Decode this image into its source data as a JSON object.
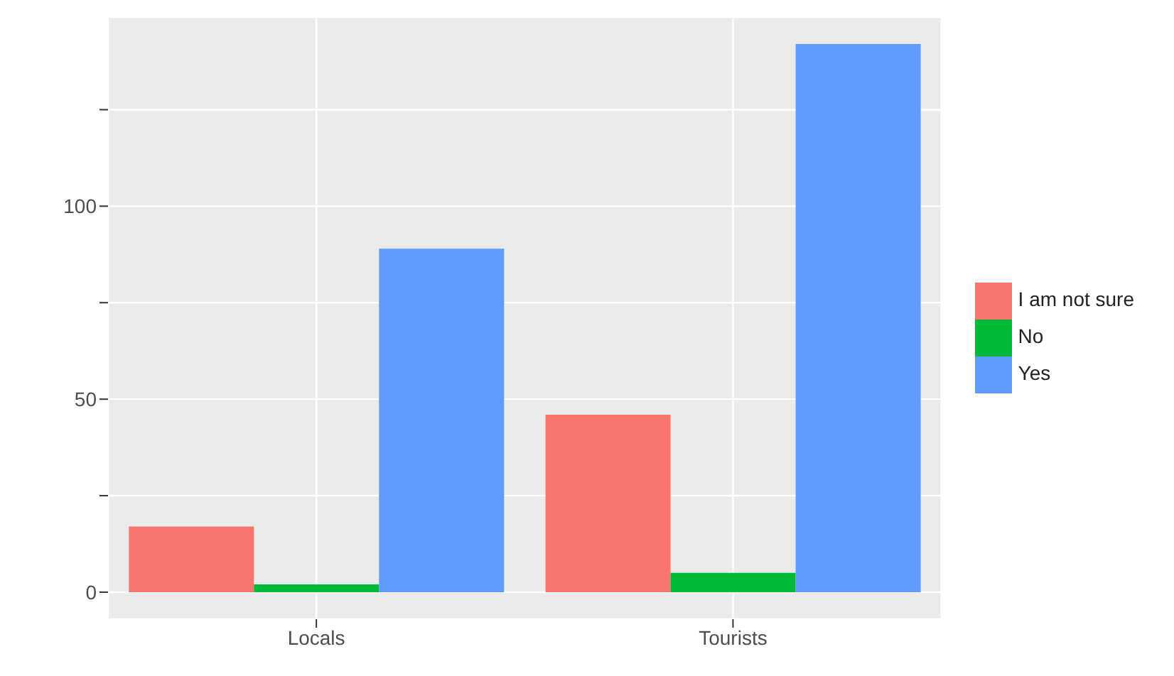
{
  "chart_data": {
    "type": "bar",
    "categories": [
      "Locals",
      "Tourists"
    ],
    "series": [
      {
        "name": "I am not sure",
        "color": "#f8766d",
        "values": [
          17,
          46
        ]
      },
      {
        "name": "No",
        "color": "#00ba38",
        "values": [
          2,
          5
        ]
      },
      {
        "name": "Yes",
        "color": "#619cff",
        "values": [
          89,
          142
        ]
      }
    ],
    "ylim": [
      -7,
      149
    ],
    "yticks": [
      0,
      {
        "value": 25,
        "label": null
      },
      50,
      {
        "value": 75,
        "label": null
      },
      100,
      {
        "value": 125,
        "label": null
      }
    ],
    "grid": true,
    "legend": "right"
  }
}
